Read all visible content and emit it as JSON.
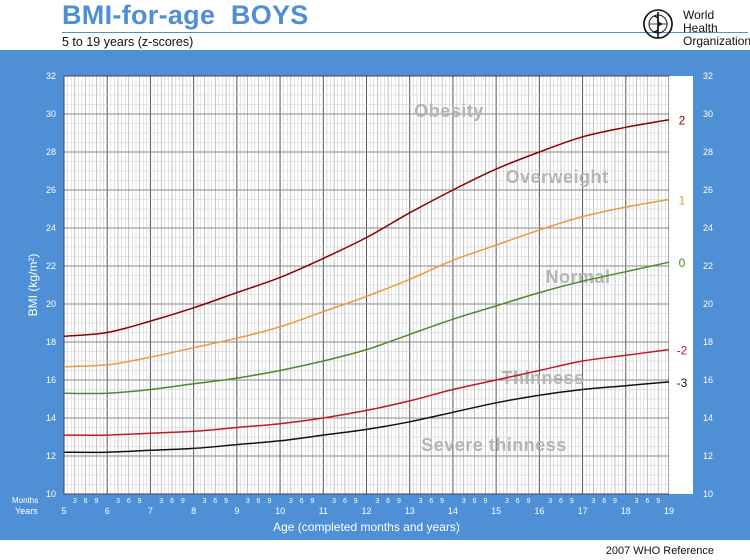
{
  "header": {
    "title": "BMI-for-age  BOYS",
    "subtitle": "5 to 19 years (z-scores)",
    "org_line1": "World Health",
    "org_line2": "Organization",
    "logo_icon": "who-emblem-icon"
  },
  "footer": {
    "reference": "2007  WHO Reference"
  },
  "colors": {
    "frame": "#4f8fd6",
    "title": "#4f8fd6",
    "z2": "#8b0000",
    "z1": "#e89a3c",
    "z0": "#4e8a2a",
    "zm2": "#c0182a",
    "zm3": "#111111",
    "zone_text": "#b5b5b5"
  },
  "chart_data": {
    "type": "line",
    "title": "BMI-for-age  BOYS",
    "subtitle": "5 to 19 years (z-scores)",
    "xlabel": "Age (completed months and years)",
    "ylabel": "BMI (kg/m²)",
    "x_row_label_months": "Months",
    "x_row_label_years": "Years",
    "xlim": [
      5,
      19
    ],
    "ylim": [
      10,
      32
    ],
    "year_ticks": [
      "5",
      "6",
      "7",
      "8",
      "9",
      "10",
      "11",
      "12",
      "13",
      "14",
      "15",
      "16",
      "17",
      "18",
      "19"
    ],
    "month_ticks": [
      "3",
      "6",
      "9"
    ],
    "y_ticks": [
      "10",
      "12",
      "14",
      "16",
      "18",
      "20",
      "22",
      "24",
      "26",
      "28",
      "30",
      "32"
    ],
    "grid": true,
    "zone_labels": [
      "Obesity",
      "Overweight",
      "Normal",
      "Thinness",
      "Severe thinness"
    ],
    "x": [
      5,
      6,
      7,
      8,
      9,
      10,
      11,
      12,
      13,
      14,
      15,
      16,
      17,
      18,
      19
    ],
    "series": [
      {
        "name": "2",
        "color": "#8b0000",
        "values": [
          18.3,
          18.5,
          19.1,
          19.8,
          20.6,
          21.4,
          22.4,
          23.5,
          24.8,
          26.0,
          27.1,
          28.0,
          28.8,
          29.3,
          29.7
        ]
      },
      {
        "name": "1",
        "color": "#e89a3c",
        "values": [
          16.7,
          16.8,
          17.2,
          17.7,
          18.2,
          18.8,
          19.6,
          20.4,
          21.3,
          22.3,
          23.1,
          23.9,
          24.6,
          25.1,
          25.5
        ]
      },
      {
        "name": "0",
        "color": "#4e8a2a",
        "values": [
          15.3,
          15.3,
          15.5,
          15.8,
          16.1,
          16.5,
          17.0,
          17.6,
          18.4,
          19.2,
          19.9,
          20.6,
          21.2,
          21.7,
          22.2
        ]
      },
      {
        "name": "-2",
        "color": "#c0182a",
        "values": [
          13.1,
          13.1,
          13.2,
          13.3,
          13.5,
          13.7,
          14.0,
          14.4,
          14.9,
          15.5,
          16.0,
          16.5,
          17.0,
          17.3,
          17.6
        ]
      },
      {
        "name": "-3",
        "color": "#111111",
        "values": [
          12.2,
          12.2,
          12.3,
          12.4,
          12.6,
          12.8,
          13.1,
          13.4,
          13.8,
          14.3,
          14.8,
          15.2,
          15.5,
          15.7,
          15.9
        ]
      }
    ]
  }
}
